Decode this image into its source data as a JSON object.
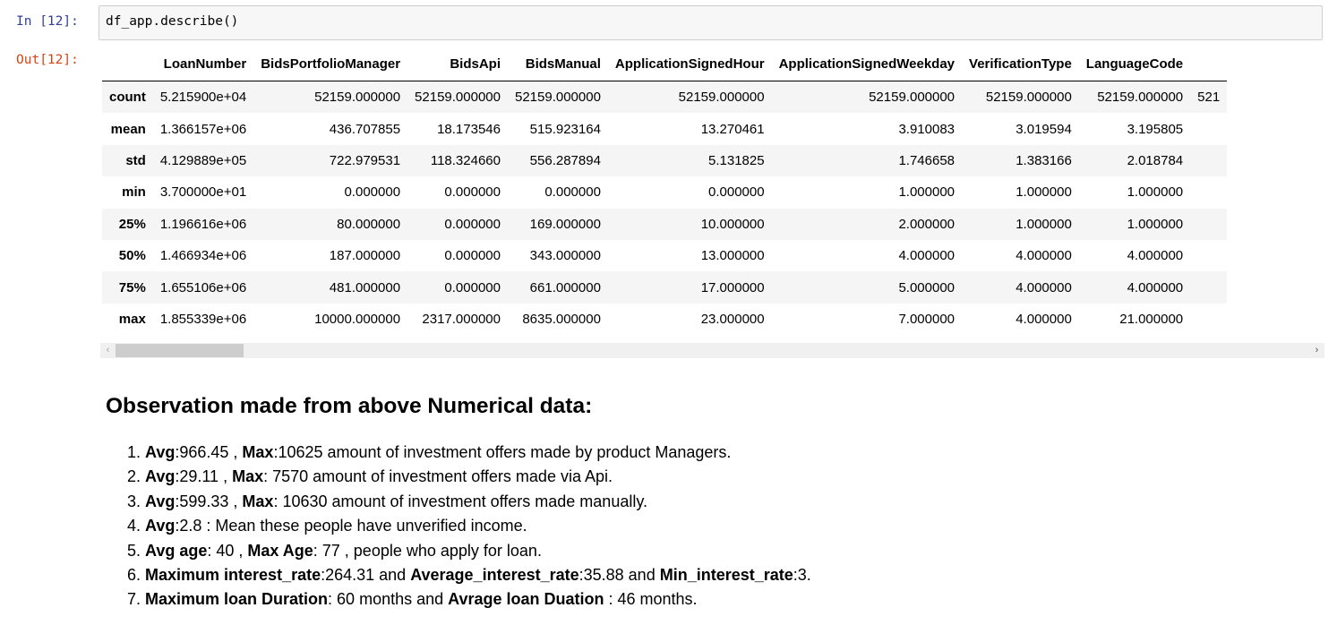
{
  "in_prompt": "In [12]:",
  "out_prompt": "Out[12]:",
  "code": "df_app.describe()",
  "table": {
    "columns": [
      "LoanNumber",
      "BidsPortfolioManager",
      "BidsApi",
      "BidsManual",
      "ApplicationSignedHour",
      "ApplicationSignedWeekday",
      "VerificationType",
      "LanguageCode"
    ],
    "rows": [
      {
        "label": "count",
        "values": [
          "5.215900e+04",
          "52159.000000",
          "52159.000000",
          "52159.000000",
          "52159.000000",
          "52159.000000",
          "52159.000000",
          "52159.000000"
        ],
        "clipped": "521"
      },
      {
        "label": "mean",
        "values": [
          "1.366157e+06",
          "436.707855",
          "18.173546",
          "515.923164",
          "13.270461",
          "3.910083",
          "3.019594",
          "3.195805"
        ],
        "clipped": ""
      },
      {
        "label": "std",
        "values": [
          "4.129889e+05",
          "722.979531",
          "118.324660",
          "556.287894",
          "5.131825",
          "1.746658",
          "1.383166",
          "2.018784"
        ],
        "clipped": ""
      },
      {
        "label": "min",
        "values": [
          "3.700000e+01",
          "0.000000",
          "0.000000",
          "0.000000",
          "0.000000",
          "1.000000",
          "1.000000",
          "1.000000"
        ],
        "clipped": ""
      },
      {
        "label": "25%",
        "values": [
          "1.196616e+06",
          "80.000000",
          "0.000000",
          "169.000000",
          "10.000000",
          "2.000000",
          "1.000000",
          "1.000000"
        ],
        "clipped": ""
      },
      {
        "label": "50%",
        "values": [
          "1.466934e+06",
          "187.000000",
          "0.000000",
          "343.000000",
          "13.000000",
          "4.000000",
          "4.000000",
          "4.000000"
        ],
        "clipped": ""
      },
      {
        "label": "75%",
        "values": [
          "1.655106e+06",
          "481.000000",
          "0.000000",
          "661.000000",
          "17.000000",
          "5.000000",
          "4.000000",
          "4.000000"
        ],
        "clipped": ""
      },
      {
        "label": "max",
        "values": [
          "1.855339e+06",
          "10000.000000",
          "2317.000000",
          "8635.000000",
          "23.000000",
          "7.000000",
          "4.000000",
          "21.000000"
        ],
        "clipped": ""
      }
    ]
  },
  "scrollbar": {
    "left_arrow": "‹",
    "right_arrow": "›",
    "position_fraction": 0.0
  },
  "markdown": {
    "heading": "Observation made from above Numerical data:",
    "items": [
      {
        "num": "1.",
        "parts": [
          {
            "b": true,
            "t": "Avg"
          },
          {
            "b": false,
            "t": ":966.45 , "
          },
          {
            "b": true,
            "t": "Max"
          },
          {
            "b": false,
            "t": ":10625 amount of investment offers made by product Managers."
          }
        ]
      },
      {
        "num": "2.",
        "parts": [
          {
            "b": true,
            "t": "Avg"
          },
          {
            "b": false,
            "t": ":29.11 , "
          },
          {
            "b": true,
            "t": "Max"
          },
          {
            "b": false,
            "t": ": 7570 amount of investment offers made via Api."
          }
        ]
      },
      {
        "num": "3.",
        "parts": [
          {
            "b": true,
            "t": "Avg"
          },
          {
            "b": false,
            "t": ":599.33 , "
          },
          {
            "b": true,
            "t": "Max"
          },
          {
            "b": false,
            "t": ": 10630 amount of investment offers made manually."
          }
        ]
      },
      {
        "num": "4.",
        "parts": [
          {
            "b": true,
            "t": "Avg"
          },
          {
            "b": false,
            "t": ":2.8 : Mean these people have unverified income."
          }
        ]
      },
      {
        "num": "5.",
        "parts": [
          {
            "b": true,
            "t": "Avg age"
          },
          {
            "b": false,
            "t": ": 40 , "
          },
          {
            "b": true,
            "t": "Max Age"
          },
          {
            "b": false,
            "t": ": 77 , people who apply for loan."
          }
        ]
      },
      {
        "num": "6.",
        "parts": [
          {
            "b": true,
            "t": "Maximum interest_rate"
          },
          {
            "b": false,
            "t": ":264.31 and "
          },
          {
            "b": true,
            "t": "Average_interest_rate"
          },
          {
            "b": false,
            "t": ":35.88 and "
          },
          {
            "b": true,
            "t": "Min_interest_rate"
          },
          {
            "b": false,
            "t": ":3."
          }
        ]
      },
      {
        "num": "7.",
        "parts": [
          {
            "b": true,
            "t": "Maximum loan Duration"
          },
          {
            "b": false,
            "t": ": 60 months and "
          },
          {
            "b": true,
            "t": "Avrage loan Duation"
          },
          {
            "b": false,
            "t": " : 46 months."
          }
        ]
      }
    ]
  }
}
